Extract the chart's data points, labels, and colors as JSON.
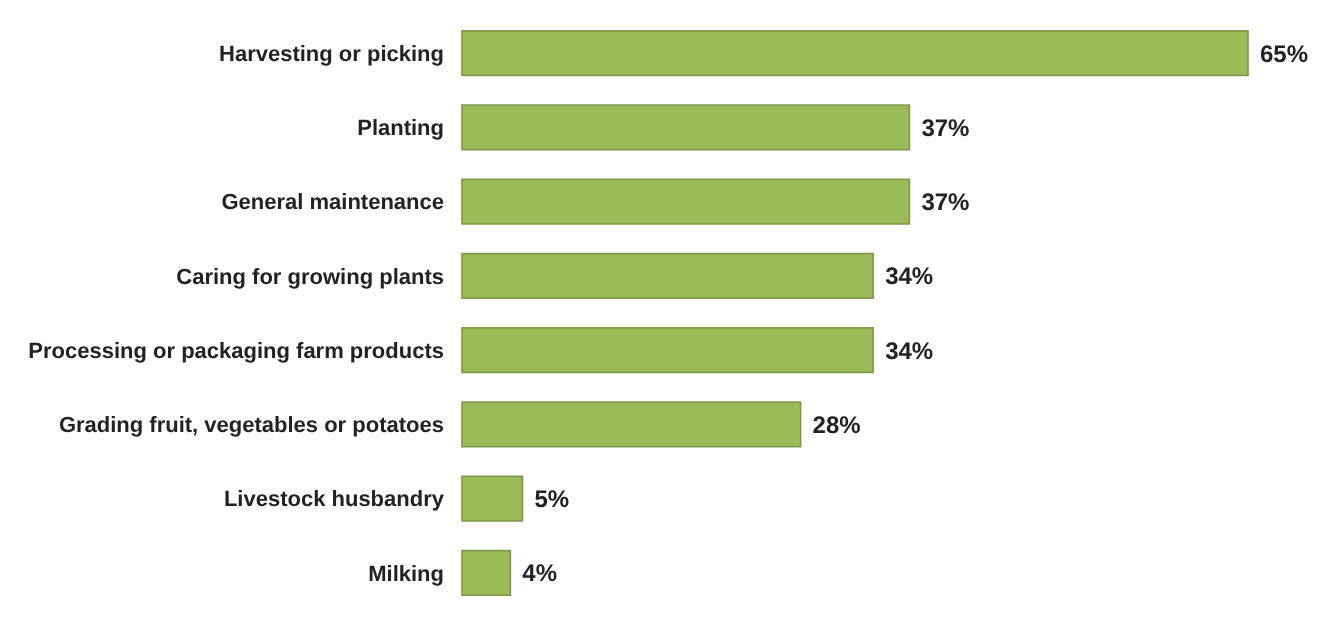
{
  "chart_data": {
    "type": "bar",
    "orientation": "horizontal",
    "categories": [
      "Harvesting or picking",
      "Planting",
      "General maintenance",
      "Caring for growing plants",
      "Processing or packaging farm products",
      "Grading fruit, vegetables or potatoes",
      "Livestock husbandry",
      "Milking"
    ],
    "values": [
      65,
      37,
      37,
      34,
      34,
      28,
      5,
      4
    ],
    "value_labels": [
      "65%",
      "37%",
      "37%",
      "34%",
      "34%",
      "28%",
      "5%",
      "4%"
    ],
    "color": "#9bbb59"
  }
}
